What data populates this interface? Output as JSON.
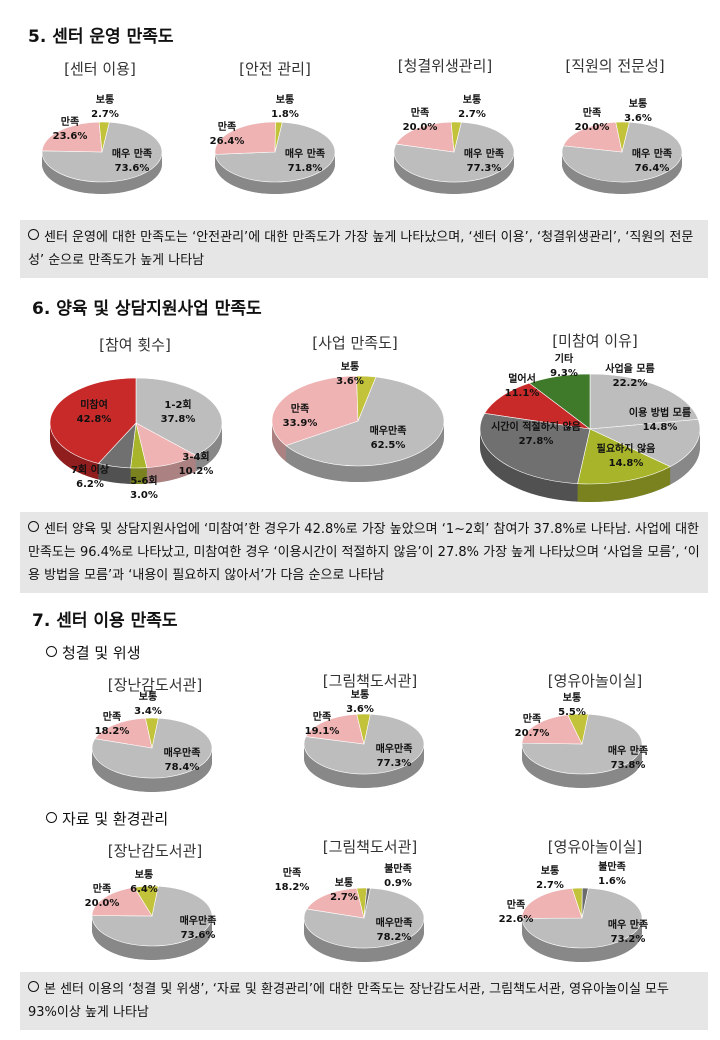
{
  "colors": {
    "very": "#bdbdbd",
    "sat": "#efb3b3",
    "norm": "#c3c23b",
    "dissat": "#6b6b6b",
    "red": "#c82a2a",
    "dark": "#707070",
    "pink": "#efb3b3",
    "olive": "#a8b52a",
    "olive_dark": "#3f7a2a",
    "note_bg": "#e6e6e6"
  },
  "s5": {
    "title": "5. 센터 운영 만족도",
    "charts": [
      {
        "title": "[센터 이용]",
        "slices": [
          {
            "label": "매우 만족",
            "value": "73.6%"
          },
          {
            "label": "만족",
            "value": "23.6%"
          },
          {
            "label": "보통",
            "value": "2.7%"
          }
        ]
      },
      {
        "title": "[안전 관리]",
        "slices": [
          {
            "label": "매우 만족",
            "value": "71.8%"
          },
          {
            "label": "만족",
            "value": "26.4%"
          },
          {
            "label": "보통",
            "value": "1.8%"
          }
        ]
      },
      {
        "title": "[청결위생관리]",
        "slices": [
          {
            "label": "매우 만족",
            "value": "77.3%"
          },
          {
            "label": "만족",
            "value": "20.0%"
          },
          {
            "label": "보통",
            "value": "2.7%"
          }
        ]
      },
      {
        "title": "[직원의 전문성]",
        "slices": [
          {
            "label": "매우 만족",
            "value": "76.4%"
          },
          {
            "label": "만족",
            "value": "20.0%"
          },
          {
            "label": "보통",
            "value": "3.6%"
          }
        ]
      }
    ],
    "note": "센터 운영에 대한 만족도는 ‘안전관리’에 대한 만족도가 가장 높게 나타났으며, ‘센터 이용’, ‘청결위생관리’, ‘직원의 전문성’ 순으로 만족도가 높게 나타남"
  },
  "s6": {
    "title": "6. 양육 및 상담지원사업 만족도",
    "charts": [
      {
        "title": "[참여 횟수]",
        "slices": [
          {
            "label": "1-2회",
            "value": "37.8%"
          },
          {
            "label": "3-4회",
            "value": "10.2%"
          },
          {
            "label": "5-6회",
            "value": "3.0%"
          },
          {
            "label": "7회 이상",
            "value": "6.2%"
          },
          {
            "label": "미참여",
            "value": "42.8%"
          }
        ]
      },
      {
        "title": "[사업 만족도]",
        "slices": [
          {
            "label": "매우만족",
            "value": "62.5%"
          },
          {
            "label": "만족",
            "value": "33.9%"
          },
          {
            "label": "보통",
            "value": "3.6%"
          }
        ]
      },
      {
        "title": "[미참여 이유]",
        "slices": [
          {
            "label": "사업을 모름",
            "value": "22.2%"
          },
          {
            "label": "이용 방법 모름",
            "value": "14.8%"
          },
          {
            "label": "필요하지 않음",
            "value": "14.8%"
          },
          {
            "label": "시간이 적절하지 않음",
            "value": "27.8%"
          },
          {
            "label": "멀어서",
            "value": "11.1%"
          },
          {
            "label": "기타",
            "value": "9.3%"
          }
        ]
      }
    ],
    "note": "센터 양육 및 상담지원사업에 ‘미참여’한 경우가 42.8%로 가장 높았으며 ‘1~2회’ 참여가 37.8%로 나타남. 사업에 대한 만족도는 96.4%로 나타났고, 미참여한 경우 ‘이용시간이 적절하지 않음’이 27.8% 가장 높게 나타났으며 ‘사업을 모름’, ‘이용 방법을 모름’과 ‘내용이 필요하지 않아서’가 다음 순으로 나타남"
  },
  "s7": {
    "title": "7. 센터 이용 만족도",
    "sub1": "청결 및 위생",
    "sub2": "자료 및 환경관리",
    "charts_a": [
      {
        "title": "[장난감도서관]",
        "slices": [
          {
            "label": "매우만족",
            "value": "78.4%"
          },
          {
            "label": "만족",
            "value": "18.2%"
          },
          {
            "label": "보통",
            "value": "3.4%"
          }
        ]
      },
      {
        "title": "[그림책도서관]",
        "slices": [
          {
            "label": "매우만족",
            "value": "77.3%"
          },
          {
            "label": "만족",
            "value": "19.1%"
          },
          {
            "label": "보통",
            "value": "3.6%"
          }
        ]
      },
      {
        "title": "[영유아놀이실]",
        "slices": [
          {
            "label": "매우 만족",
            "value": "73.8%"
          },
          {
            "label": "만족",
            "value": "20.7%"
          },
          {
            "label": "보통",
            "value": "5.5%"
          }
        ]
      }
    ],
    "charts_b": [
      {
        "title": "[장난감도서관]",
        "slices": [
          {
            "label": "매우만족",
            "value": "73.6%"
          },
          {
            "label": "만족",
            "value": "20.0%"
          },
          {
            "label": "보통",
            "value": "6.4%"
          }
        ]
      },
      {
        "title": "[그림책도서관]",
        "slices": [
          {
            "label": "매우만족",
            "value": "78.2%"
          },
          {
            "label": "만족",
            "value": "18.2%"
          },
          {
            "label": "보통",
            "value": "2.7%"
          },
          {
            "label": "불만족",
            "value": "0.9%"
          }
        ]
      },
      {
        "title": "[영유아놀이실]",
        "slices": [
          {
            "label": "매우 만족",
            "value": "73.2%"
          },
          {
            "label": "만족",
            "value": "22.6%"
          },
          {
            "label": "보통",
            "value": "2.7%"
          },
          {
            "label": "불만족",
            "value": "1.6%"
          }
        ]
      }
    ],
    "note": "본 센터 이용의 ‘청결 및 위생’, ‘자료 및 환경관리’에 대한 만족도는 장난감도서관, 그림책도서관, 영유아놀이실 모두 93%이상 높게 나타남"
  }
}
